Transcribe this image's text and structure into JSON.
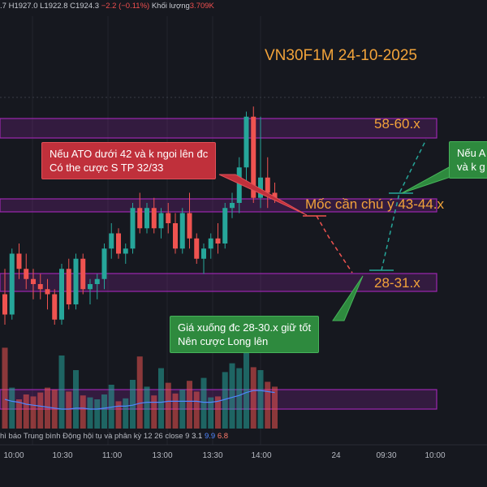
{
  "header": {
    "ohlc_prefix": ".7",
    "ohlc_h": "H1927.0",
    "ohlc_l": "L1922.8",
    "ohlc_c": "C1924.3",
    "ohlc_change": "−2.2 (−0.11%)",
    "volume_label": "Khối lượng",
    "volume_value": "3.709K"
  },
  "title": "VN30F1M 24-10-2025",
  "zones": {
    "top_label": "58-60.x",
    "mid_label": "Mốc cần chú ý 43-44.x",
    "low_label": "28-31.x"
  },
  "callouts": {
    "red_line1": "Nếu ATO dưới 42 và k ngoi lên đc",
    "red_line2": "Có the cược S TP 32/33",
    "green_right_line1": "Nếu A",
    "green_right_line2": "và k g",
    "green_bottom_line1": "Giá xuống đc 28-30.x giữ tốt",
    "green_bottom_line2": "Nên cược Long lên"
  },
  "indicator": {
    "legend_text": "hì báo Trung bình Động hội tụ và phân kỳ 12 26 close 9",
    "val1": "3.1",
    "val2": "9.9",
    "val3": "6.8"
  },
  "colors": {
    "up": "#26a69a",
    "down": "#ef5350",
    "zone": "#9c27b0",
    "accent": "#f2a33a"
  },
  "chart_data": {
    "type": "candlestick",
    "title": "VN30F1M 24-10-2025",
    "x_ticks": [
      "10:00",
      "10:30",
      "11:00",
      "13:00",
      "13:30",
      "14:00",
      "24",
      "09:30",
      "10:00"
    ],
    "ylim": [
      1895,
      1970
    ],
    "zones": [
      {
        "label": "58-60.x",
        "from": 1957.5,
        "to": 1960
      },
      {
        "label": "Mốc cần chú ý 43-44.x",
        "from": 1943,
        "to": 1944.5
      },
      {
        "label": "28-31.x",
        "from": 1928,
        "to": 1931
      }
    ],
    "candles": [
      [
        1926,
        1931,
        1920,
        1922
      ],
      [
        1922,
        1935,
        1921,
        1934
      ],
      [
        1934,
        1936,
        1929,
        1931
      ],
      [
        1931,
        1934,
        1927,
        1929
      ],
      [
        1929,
        1931,
        1925,
        1928
      ],
      [
        1928,
        1930,
        1925,
        1927
      ],
      [
        1927,
        1929,
        1923,
        1926
      ],
      [
        1926,
        1927,
        1920,
        1921
      ],
      [
        1921,
        1932,
        1920,
        1931
      ],
      [
        1931,
        1933,
        1923,
        1924
      ],
      [
        1924,
        1934,
        1923,
        1933
      ],
      [
        1933,
        1934,
        1926,
        1927
      ],
      [
        1927,
        1929,
        1924,
        1928
      ],
      [
        1928,
        1930,
        1925,
        1929
      ],
      [
        1929,
        1936,
        1927,
        1935
      ],
      [
        1935,
        1940,
        1933,
        1938
      ],
      [
        1938,
        1939,
        1933,
        1934
      ],
      [
        1934,
        1936,
        1932,
        1935
      ],
      [
        1935,
        1944,
        1934,
        1943
      ],
      [
        1943,
        1946,
        1938,
        1939
      ],
      [
        1939,
        1944,
        1938,
        1943
      ],
      [
        1943,
        1945,
        1938,
        1939
      ],
      [
        1939,
        1943,
        1937,
        1942
      ],
      [
        1942,
        1944,
        1938,
        1940
      ],
      [
        1940,
        1942,
        1934,
        1935
      ],
      [
        1935,
        1943,
        1934,
        1942
      ],
      [
        1942,
        1946,
        1935,
        1937
      ],
      [
        1937,
        1938,
        1932,
        1933
      ],
      [
        1933,
        1936,
        1930,
        1935
      ],
      [
        1935,
        1938,
        1933,
        1937
      ],
      [
        1937,
        1940,
        1934,
        1936
      ],
      [
        1936,
        1944,
        1935,
        1943
      ],
      [
        1943,
        1946,
        1941,
        1944
      ],
      [
        1944,
        1953,
        1942,
        1951
      ],
      [
        1951,
        1962,
        1948,
        1961
      ],
      [
        1961,
        1963,
        1944,
        1945
      ],
      [
        1945,
        1961,
        1943,
        1949
      ],
      [
        1949,
        1953,
        1943,
        1946
      ],
      [
        1946,
        1948,
        1944,
        1945
      ]
    ],
    "volumes": [
      0.83,
      0.42,
      0.3,
      0.35,
      0.33,
      0.37,
      0.42,
      0.4,
      0.75,
      0.38,
      0.6,
      0.34,
      0.32,
      0.3,
      0.35,
      0.45,
      0.28,
      0.31,
      0.5,
      0.74,
      0.43,
      0.34,
      0.62,
      0.47,
      0.36,
      0.4,
      0.49,
      0.38,
      0.52,
      0.32,
      0.33,
      0.58,
      0.67,
      0.62,
      0.98,
      0.63,
      0.6,
      0.48,
      0.43
    ],
    "macd_signal": [
      0.3,
      0.28,
      0.27,
      0.25,
      0.24,
      0.23,
      0.22,
      0.21,
      0.2,
      0.2,
      0.21,
      0.21,
      0.2,
      0.2,
      0.21,
      0.22,
      0.23,
      0.23,
      0.24,
      0.26,
      0.27,
      0.27,
      0.27,
      0.28,
      0.28,
      0.28,
      0.28,
      0.28,
      0.27,
      0.27,
      0.28,
      0.3,
      0.32,
      0.34,
      0.37,
      0.39,
      0.39,
      0.38,
      0.37
    ],
    "projection": [
      {
        "style": "red-dashed",
        "path": [
          [
            1943,
            0
          ],
          [
            1930,
            1
          ]
        ]
      },
      {
        "style": "green-dashed",
        "path": [
          [
            1930,
            1
          ],
          [
            1944,
            2
          ],
          [
            1958,
            3
          ]
        ]
      }
    ]
  }
}
